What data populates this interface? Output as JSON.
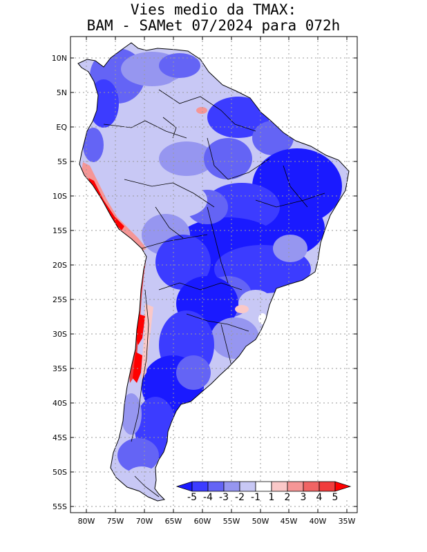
{
  "title": {
    "line1": "Vies medio da TMAX:",
    "line2": "BAM - SAMet 07/2024  para 072h"
  },
  "colors": {
    "ocean": "#ffffff",
    "grid": "#9a9a9a",
    "border": "#000000",
    "palette": [
      "#1a1aff",
      "#3c3cff",
      "#6464f5",
      "#9696f0",
      "#c8c8f5",
      "#ffffff",
      "#fac8c8",
      "#f59696",
      "#f06464",
      "#f03c3c",
      "#ff0000"
    ]
  },
  "lat_labels": [
    "10N",
    "5N",
    "EQ",
    "5S",
    "10S",
    "15S",
    "20S",
    "25S",
    "30S",
    "35S",
    "40S",
    "45S",
    "50S",
    "55S"
  ],
  "lon_labels": [
    "80W",
    "75W",
    "70W",
    "65W",
    "60W",
    "55W",
    "50W",
    "45W",
    "40W",
    "35W"
  ],
  "colorbar": {
    "labels": [
      "-5",
      "-4",
      "-3",
      "-2",
      "-1",
      "1",
      "2",
      "3",
      "4",
      "5"
    ]
  }
}
